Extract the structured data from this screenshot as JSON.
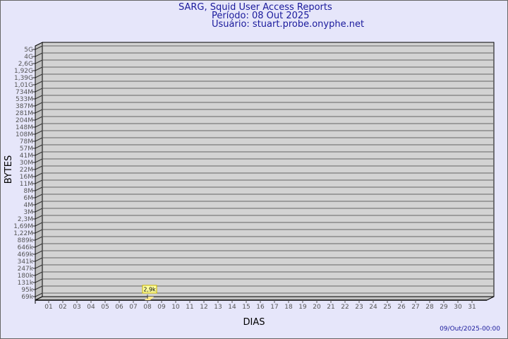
{
  "header": {
    "title": "SARG, Squid User Access Reports",
    "period": "Período: 08 Out 2025",
    "user": "Usuário: stuart.probe.onyphe.net"
  },
  "footer": {
    "timestamp": "09/Out/2025-00:00"
  },
  "chart_data": {
    "type": "bar",
    "xlabel": "DIAS",
    "ylabel": "BYTES",
    "y_scale": "log",
    "grid": true,
    "y_tick_labels": [
      "5G",
      "4G",
      "2,6G",
      "1,92G",
      "1,39G",
      "1,01G",
      "734M",
      "533M",
      "387M",
      "281M",
      "204M",
      "148M",
      "108M",
      "78M",
      "57M",
      "41M",
      "30M",
      "22M",
      "16M",
      "11M",
      "8M",
      "6M",
      "4M",
      "3M",
      "2,3M",
      "1,69M",
      "1,22M",
      "889k",
      "646k",
      "469k",
      "341k",
      "247k",
      "180k",
      "131k",
      "95k",
      "69k"
    ],
    "categories": [
      "01",
      "02",
      "03",
      "04",
      "05",
      "06",
      "07",
      "08",
      "09",
      "10",
      "11",
      "12",
      "13",
      "14",
      "15",
      "16",
      "17",
      "18",
      "19",
      "20",
      "21",
      "22",
      "23",
      "24",
      "25",
      "26",
      "27",
      "28",
      "29",
      "30",
      "31"
    ],
    "values": [
      0,
      0,
      0,
      0,
      0,
      0,
      0,
      2900,
      0,
      0,
      0,
      0,
      0,
      0,
      0,
      0,
      0,
      0,
      0,
      0,
      0,
      0,
      0,
      0,
      0,
      0,
      0,
      0,
      0,
      0,
      0
    ],
    "data_labels": {
      "08": "2,9k"
    },
    "colors": {
      "wall": "#d3d3d3",
      "side": "#c0c0c0",
      "bar": "#ffe88a",
      "label_bg": "#ffffa0",
      "label_border": "#c8b400"
    }
  }
}
